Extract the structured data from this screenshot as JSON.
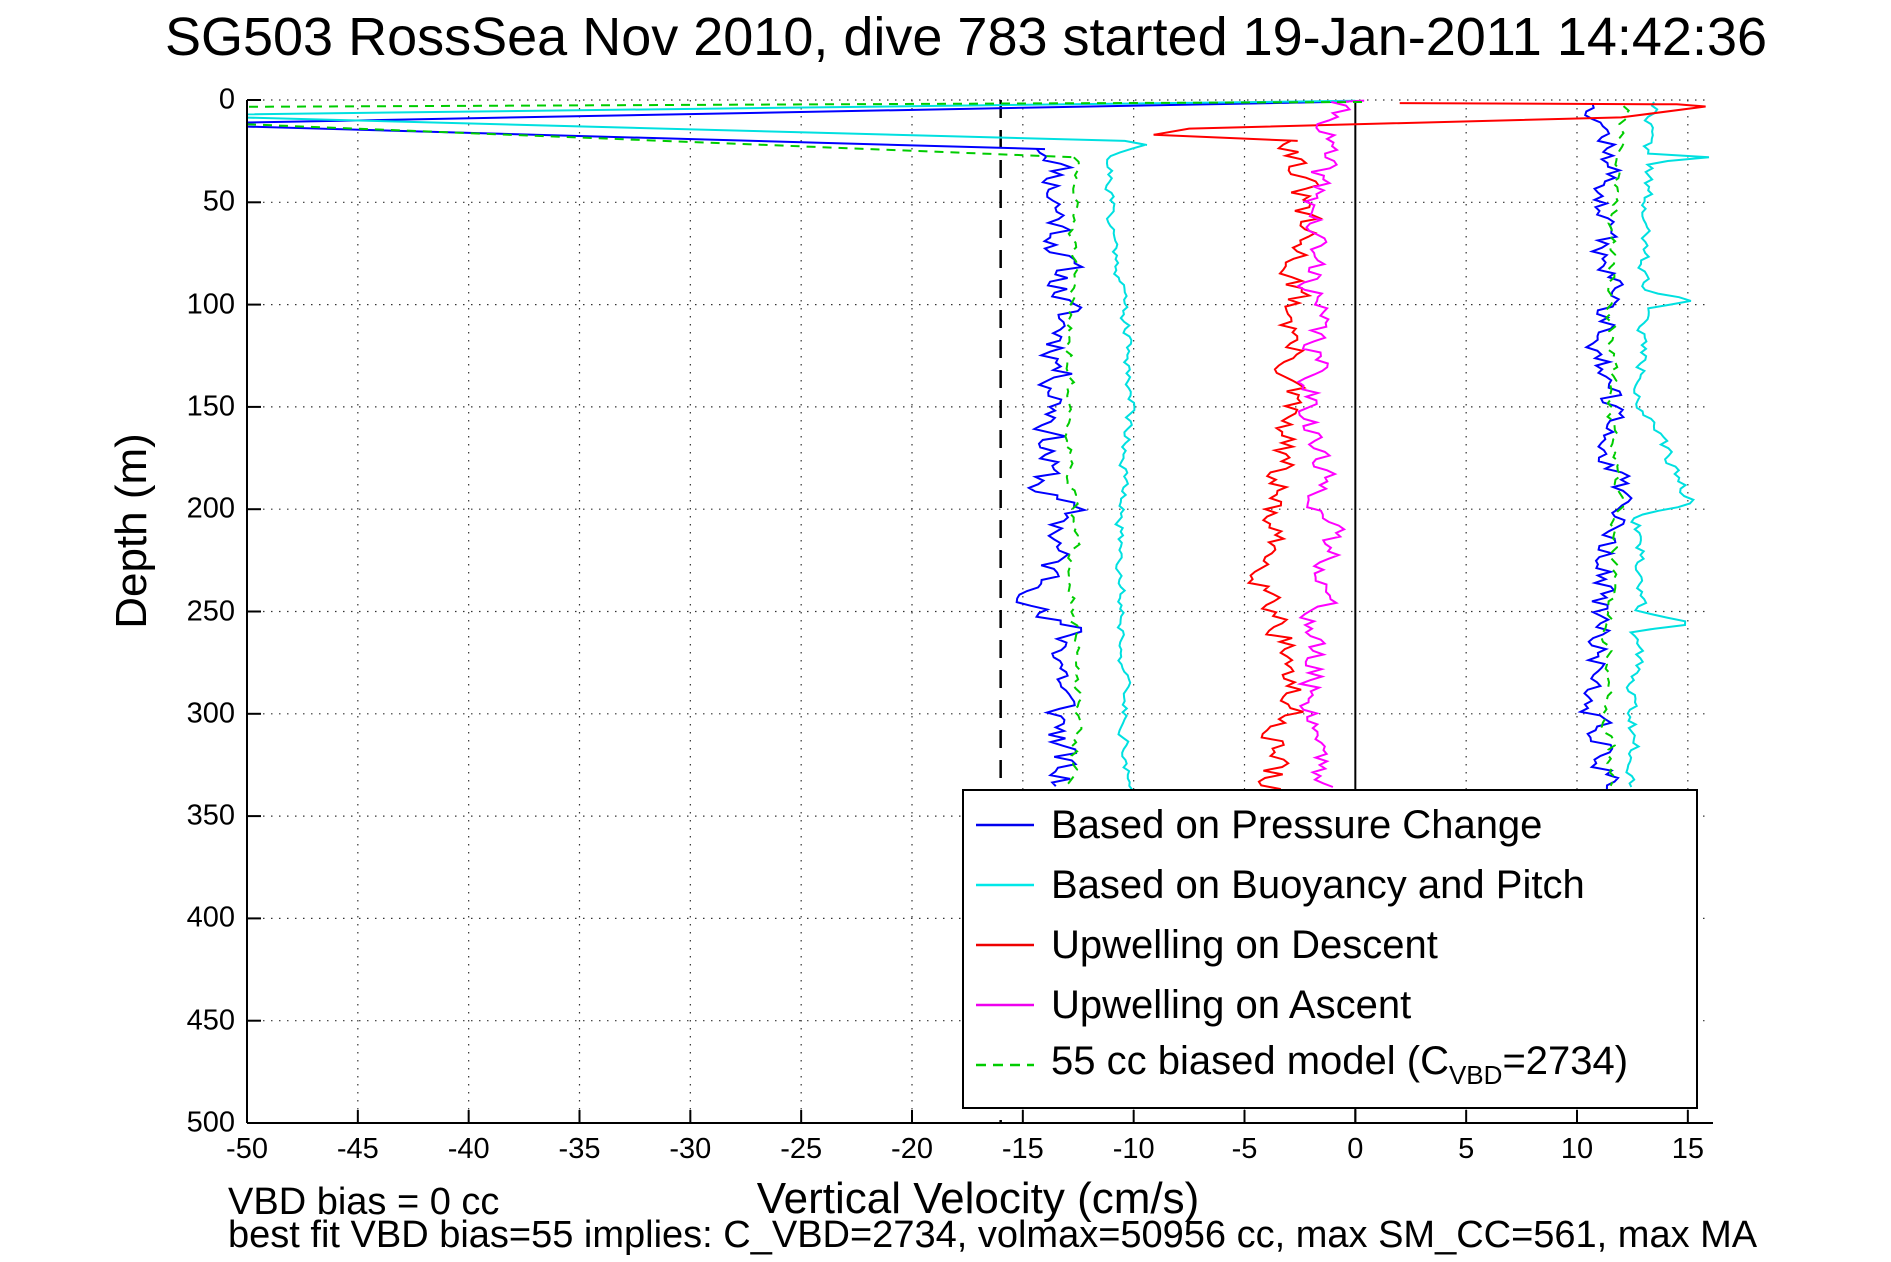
{
  "title": "SG503 RossSea Nov 2010, dive 783 started 19-Jan-2011 14:42:36",
  "axes": {
    "xlabel": "Vertical Velocity (cm/s)",
    "ylabel": "Depth (m)",
    "xticks": [
      -50,
      -45,
      -40,
      -35,
      -30,
      -25,
      -20,
      -15,
      -10,
      -5,
      0,
      5,
      10,
      15
    ],
    "yticks": [
      0,
      50,
      100,
      150,
      200,
      250,
      300,
      350,
      400,
      450,
      500
    ]
  },
  "annotations": {
    "vbd_bias": "VBD bias = 0 cc",
    "best_fit": "best fit VBD bias=55 implies: C_VBD=2734, volmax=50956 cc, max SM_CC=561, max MA"
  },
  "legend": {
    "entries": [
      {
        "label": "Based on Pressure Change",
        "color": "#0000ee",
        "dash": false
      },
      {
        "label": "Based on Buoyancy and Pitch",
        "color": "#00e8e8",
        "dash": false
      },
      {
        "label": "Upwelling on Descent",
        "color": "#ee0000",
        "dash": false
      },
      {
        "label": "Upwelling on Ascent",
        "color": "#ee00ee",
        "dash": false
      },
      {
        "label_pre": "55 cc biased model (C",
        "label_sub": "VBD",
        "label_post": "=2734)",
        "color": "#00cc00",
        "dash": true
      }
    ]
  },
  "chart_data": {
    "type": "line",
    "title": "SG503 RossSea Nov 2010, dive 783 started 19-Jan-2011 14:42:36",
    "xlabel": "Vertical Velocity (cm/s)",
    "ylabel": "Depth (m)",
    "xlim": [
      -50,
      16
    ],
    "ylim": [
      0,
      500
    ],
    "y_inverted": true,
    "grid": true,
    "legend_position": "south-center-overlapping",
    "reference_lines": [
      {
        "x": -16,
        "style": "dashed",
        "color": "#000000"
      },
      {
        "x": 0,
        "style": "solid",
        "color": "#000000"
      }
    ],
    "series": [
      {
        "name": "Based on Pressure Change",
        "color": "#0000ff",
        "dash": false,
        "parts": [
          {
            "points_vd": [
              [
                -0.3,
                0.8
              ],
              [
                -50,
                11
              ]
            ]
          },
          {
            "points_vd": [
              [
                -50,
                13
              ],
              [
                -14,
                24
              ]
            ]
          },
          {
            "walk": {
              "anchors_dv": [
                [
                  24,
                  -14
                ],
                [
                  30,
                  -13.2
                ],
                [
                  45,
                  -13.6
                ],
                [
                  60,
                  -13.3
                ],
                [
                  100,
                  -13.2
                ],
                [
                  150,
                  -13.4
                ],
                [
                  190,
                  -14.2
                ],
                [
                  200,
                  -13
                ],
                [
                  252,
                  -14.4
                ],
                [
                  258,
                  -13
                ],
                [
                  300,
                  -13.3
                ],
                [
                  337,
                  -13.4
                ]
              ],
              "amp": 1.0,
              "seed": 11,
              "step": 1.8
            }
          },
          {
            "walk": {
              "anchors_dv": [
                [
                  2,
                  11
                ],
                [
                  30,
                  11.5
                ],
                [
                  60,
                  11
                ],
                [
                  90,
                  11.6
                ],
                [
                  120,
                  11.2
                ],
                [
                  160,
                  11.4
                ],
                [
                  200,
                  11.8
                ],
                [
                  230,
                  11.2
                ],
                [
                  260,
                  10.9
                ],
                [
                  300,
                  10.9
                ],
                [
                  320,
                  11.3
                ],
                [
                  337,
                  11.5
                ]
              ],
              "amp": 0.8,
              "seed": 12,
              "step": 1.8
            }
          }
        ]
      },
      {
        "name": "Based on Buoyancy and Pitch",
        "color": "#00e0e0",
        "dash": false,
        "parts": [
          {
            "points_vd": [
              [
                0,
                0.4
              ],
              [
                -50,
                7
              ]
            ]
          },
          {
            "points_vd": [
              [
                -50,
                8.6
              ],
              [
                -10.4,
                20
              ],
              [
                -9.4,
                22
              ]
            ]
          },
          {
            "walk": {
              "anchors_dv": [
                [
                  22,
                  -9.4
                ],
                [
                  28,
                  -11.1
                ],
                [
                  60,
                  -11
                ],
                [
                  100,
                  -10.4
                ],
                [
                  150,
                  -10.1
                ],
                [
                  200,
                  -10.6
                ],
                [
                  260,
                  -10.5
                ],
                [
                  300,
                  -10.4
                ],
                [
                  337,
                  -10.3
                ]
              ],
              "amp": 0.28,
              "seed": 21,
              "step": 1.8
            }
          },
          {
            "walk": {
              "anchors_dv": [
                [
                  1,
                  13.6
                ],
                [
                  20,
                  13.1
                ],
                [
                  26,
                  13.1
                ],
                [
                  28,
                  15.9
                ],
                [
                  31,
                  13.2
                ],
                [
                  60,
                  13
                ],
                [
                  92,
                  13
                ],
                [
                  98,
                  15.3
                ],
                [
                  102,
                  13
                ],
                [
                  150,
                  12.9
                ],
                [
                  197,
                  15.2
                ],
                [
                  203,
                  12.8
                ],
                [
                  250,
                  12.9
                ],
                [
                  256,
                  15.4
                ],
                [
                  260,
                  12.7
                ],
                [
                  300,
                  12.5
                ],
                [
                  337,
                  12.6
                ]
              ],
              "amp": 0.35,
              "seed": 22,
              "step": 1.8
            }
          }
        ]
      },
      {
        "name": "Upwelling on Descent",
        "color": "#ff0000",
        "dash": false,
        "parts": [
          {
            "points_vd": [
              [
                2,
                1.5
              ],
              [
                14.5,
                2.1
              ],
              [
                15.8,
                3.2
              ],
              [
                12,
                8.5
              ],
              [
                -7.5,
                14
              ],
              [
                -9.1,
                17
              ],
              [
                -2.6,
                20
              ]
            ]
          },
          {
            "walk": {
              "anchors_dv": [
                [
                  20,
                  -2.6
                ],
                [
                  60,
                  -2.4
                ],
                [
                  90,
                  -2.8
                ],
                [
                  130,
                  -2.9
                ],
                [
                  190,
                  -3.6
                ],
                [
                  210,
                  -4
                ],
                [
                  240,
                  -3.8
                ],
                [
                  265,
                  -3
                ],
                [
                  300,
                  -3
                ],
                [
                  325,
                  -3.8
                ],
                [
                  337,
                  -3.6
                ]
              ],
              "amp": 0.9,
              "seed": 31,
              "step": 1.8
            }
          }
        ]
      },
      {
        "name": "Upwelling on Ascent",
        "color": "#ff00ff",
        "dash": false,
        "parts": [
          {
            "points_vd": [
              [
                0.4,
                0.3
              ],
              [
                -0.8,
                1
              ]
            ]
          },
          {
            "walk": {
              "anchors_dv": [
                [
                  1,
                  -0.8
                ],
                [
                  30,
                  -1.6
                ],
                [
                  60,
                  -1.9
                ],
                [
                  120,
                  -1.8
                ],
                [
                  160,
                  -1.9
                ],
                [
                  200,
                  -1.4
                ],
                [
                  230,
                  -1.1
                ],
                [
                  260,
                  -2
                ],
                [
                  300,
                  -1.9
                ],
                [
                  320,
                  -1.3
                ],
                [
                  337,
                  -1.6
                ]
              ],
              "amp": 0.8,
              "seed": 41,
              "step": 1.8
            }
          }
        ]
      },
      {
        "name": "55 cc biased model (C_VBD=2734)",
        "color": "#00cc00",
        "dash": true,
        "parts": [
          {
            "points_vd": [
              [
                0.3,
                1
              ],
              [
                -50,
                3.3
              ]
            ]
          },
          {
            "points_vd": [
              [
                -50,
                11.9
              ],
              [
                -12.6,
                28
              ]
            ]
          },
          {
            "walk": {
              "anchors_dv": [
                [
                  28,
                  -12.6
                ],
                [
                  80,
                  -12.8
                ],
                [
                  150,
                  -12.9
                ],
                [
                  220,
                  -12.7
                ],
                [
                  300,
                  -12.6
                ],
                [
                  337,
                  -12.7
                ]
              ],
              "amp": 0.3,
              "seed": 51,
              "step": 2.2
            }
          },
          {
            "walk": {
              "anchors_dv": [
                [
                  3,
                  12.2
                ],
                [
                  40,
                  11.7
                ],
                [
                  100,
                  11.5
                ],
                [
                  160,
                  11.6
                ],
                [
                  200,
                  11.9
                ],
                [
                  260,
                  11.4
                ],
                [
                  300,
                  11.4
                ],
                [
                  337,
                  11.6
                ]
              ],
              "amp": 0.3,
              "seed": 52,
              "step": 2.2
            }
          }
        ]
      }
    ]
  }
}
